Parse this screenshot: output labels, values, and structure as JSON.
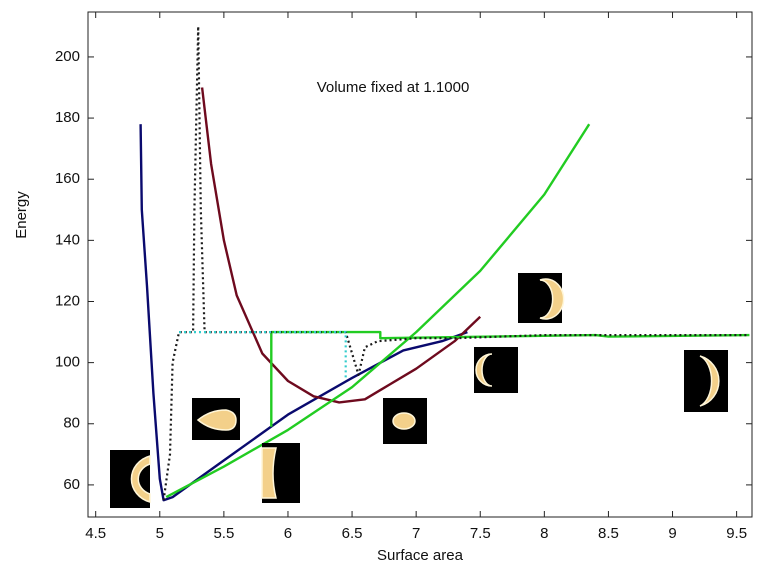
{
  "chart_data": {
    "type": "line",
    "annotation": "Volume fixed at 1.1000",
    "x_label": "Surface area",
    "y_label": "Energy",
    "xlim": [
      4.44,
      9.62
    ],
    "ylim": [
      49.5,
      214.7
    ],
    "xticks": [
      4.5,
      5,
      5.5,
      6,
      6.5,
      7,
      7.5,
      8,
      8.5,
      9,
      9.5
    ],
    "yticks": [
      60,
      80,
      100,
      120,
      140,
      160,
      180,
      200
    ],
    "series": [
      {
        "color": "#0a0a6e",
        "style": "solid",
        "x": [
          4.85,
          4.86,
          4.9,
          4.95,
          5.0,
          5.03,
          5.1,
          5.5,
          6.0,
          6.5,
          6.9,
          7.2,
          7.4
        ],
        "values": [
          178,
          150,
          125,
          90,
          62,
          55,
          56,
          68,
          83,
          95,
          104,
          107,
          110
        ]
      },
      {
        "color": "#6e0a1e",
        "style": "solid",
        "x": [
          5.33,
          5.4,
          5.5,
          5.6,
          5.8,
          6.0,
          6.2,
          6.4,
          6.6,
          6.8,
          7.0,
          7.3,
          7.5
        ],
        "values": [
          190,
          165,
          140,
          122,
          103,
          94,
          89,
          87,
          88,
          93,
          98,
          107,
          115
        ]
      },
      {
        "color": "#22cc22",
        "style": "solid",
        "x": [
          5.05,
          5.5,
          6.0,
          6.5,
          7.0,
          7.5,
          8.0,
          8.35
        ],
        "values": [
          56,
          66,
          78,
          92,
          110,
          130,
          155,
          178
        ]
      },
      {
        "color": "#22cc22",
        "style": "solid",
        "x": [
          5.87,
          5.87,
          6.72,
          6.72,
          8.4,
          8.5,
          9.6
        ],
        "values": [
          79,
          110,
          110,
          108,
          109,
          108.5,
          109
        ]
      },
      {
        "color": "#1a1a1a",
        "style": "dotted",
        "x": [
          5.03,
          5.08,
          5.1,
          5.15,
          5.26,
          5.27,
          5.3,
          5.32,
          5.35,
          6.45,
          6.55,
          6.6,
          6.7,
          7.0,
          7.3,
          8.0,
          9.6
        ],
        "values": [
          55,
          70,
          100,
          110,
          110,
          150,
          210,
          150,
          110,
          110,
          96,
          105,
          107,
          108,
          108,
          109,
          109
        ]
      },
      {
        "color": "#33cccc",
        "style": "dotted",
        "x": [
          5.15,
          6.45,
          6.45
        ],
        "values": [
          110,
          110,
          95
        ]
      }
    ]
  }
}
